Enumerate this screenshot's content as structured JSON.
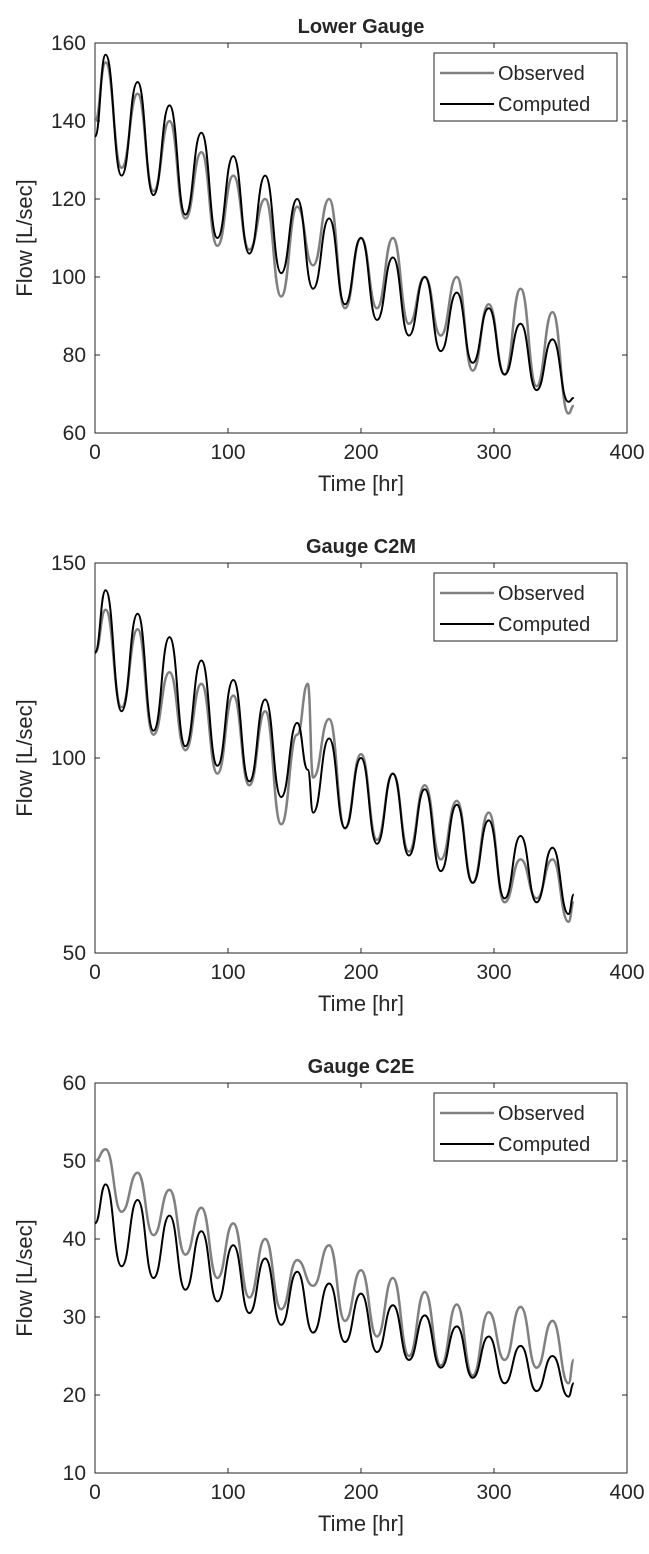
{
  "colors": {
    "observed": "#808080",
    "computed": "#000000",
    "axis": "#262626",
    "background": "#ffffff"
  },
  "chart_data": [
    {
      "type": "line",
      "title": "Lower Gauge",
      "xlabel": "Time [hr]",
      "ylabel": "Flow [L/sec]",
      "xlim": [
        0,
        400
      ],
      "ylim": [
        60,
        160
      ],
      "xticks": [
        0,
        100,
        200,
        300,
        400
      ],
      "yticks": [
        60,
        80,
        100,
        120,
        140,
        160
      ],
      "grid": false,
      "legend_position": "top-right",
      "legend": [
        "Observed",
        "Computed"
      ],
      "x": [
        0,
        8,
        20,
        32,
        44,
        56,
        68,
        80,
        92,
        104,
        116,
        128,
        140,
        152,
        164,
        176,
        188,
        200,
        212,
        224,
        236,
        248,
        260,
        272,
        284,
        296,
        308,
        320,
        332,
        344,
        356,
        360
      ],
      "series": [
        {
          "name": "Observed",
          "values": [
            140,
            155,
            128,
            147,
            122,
            140,
            115,
            132,
            108,
            126,
            107,
            120,
            95,
            118,
            103,
            120,
            92,
            110,
            92,
            110,
            88,
            100,
            85,
            100,
            76,
            93,
            75,
            97,
            72,
            91,
            65,
            67
          ]
        },
        {
          "name": "Computed",
          "values": [
            136,
            157,
            126,
            150,
            121,
            144,
            116,
            137,
            110,
            131,
            106,
            126,
            101,
            120,
            97,
            115,
            93,
            110,
            89,
            105,
            85,
            100,
            81,
            96,
            78,
            92,
            75,
            88,
            71,
            84,
            68,
            69
          ]
        }
      ]
    },
    {
      "type": "line",
      "title": "Gauge C2M",
      "xlabel": "Time [hr]",
      "ylabel": "Flow [L/sec]",
      "xlim": [
        0,
        400
      ],
      "ylim": [
        50,
        150
      ],
      "xticks": [
        0,
        100,
        200,
        300,
        400
      ],
      "yticks": [
        50,
        100,
        150
      ],
      "grid": false,
      "legend_position": "top-right",
      "legend": [
        "Observed",
        "Computed"
      ],
      "x": [
        0,
        8,
        20,
        32,
        44,
        56,
        68,
        80,
        92,
        104,
        116,
        128,
        140,
        152,
        160,
        164,
        176,
        188,
        200,
        212,
        224,
        236,
        248,
        260,
        272,
        284,
        296,
        308,
        320,
        332,
        344,
        356,
        360
      ],
      "series": [
        {
          "name": "Observed",
          "values": [
            127,
            138,
            113,
            133,
            106,
            122,
            102,
            119,
            96,
            116,
            93,
            112,
            83,
            106,
            119,
            95,
            110,
            82,
            101,
            79,
            96,
            76,
            93,
            74,
            89,
            68,
            86,
            63,
            74,
            64,
            74,
            58,
            63
          ]
        },
        {
          "name": "Computed",
          "values": [
            127,
            143,
            112,
            137,
            107,
            131,
            103,
            125,
            98,
            120,
            94,
            115,
            90,
            109,
            97,
            86,
            105,
            82,
            100,
            78,
            96,
            75,
            92,
            71,
            88,
            68,
            84,
            64,
            80,
            63,
            77,
            60,
            65
          ]
        }
      ]
    },
    {
      "type": "line",
      "title": "Gauge C2E",
      "xlabel": "Time [hr]",
      "ylabel": "Flow [L/sec]",
      "xlim": [
        0,
        400
      ],
      "ylim": [
        10,
        60
      ],
      "xticks": [
        0,
        100,
        200,
        300,
        400
      ],
      "yticks": [
        10,
        20,
        30,
        40,
        50,
        60
      ],
      "grid": false,
      "legend_position": "top-right",
      "legend": [
        "Observed",
        "Computed"
      ],
      "x": [
        0,
        8,
        20,
        32,
        44,
        56,
        68,
        80,
        92,
        104,
        116,
        128,
        140,
        152,
        164,
        176,
        188,
        200,
        212,
        224,
        236,
        248,
        260,
        272,
        284,
        296,
        308,
        320,
        332,
        344,
        356,
        360
      ],
      "series": [
        {
          "name": "Observed",
          "values": [
            50,
            51.5,
            43.5,
            48.5,
            40.5,
            46.3,
            38,
            44,
            35,
            42,
            32.5,
            40,
            31,
            37.3,
            34,
            39.2,
            29.5,
            36,
            27.5,
            35,
            25,
            33.2,
            23.8,
            31.6,
            22.5,
            30.6,
            24.5,
            31.3,
            23.5,
            29.5,
            21.5,
            24.5
          ]
        },
        {
          "name": "Computed",
          "values": [
            42,
            47,
            36.5,
            45,
            35,
            43,
            33.5,
            41,
            32,
            39.2,
            30.5,
            37.5,
            29,
            35.8,
            28,
            34.3,
            26.8,
            33,
            25.5,
            31.5,
            24.5,
            30.2,
            23.5,
            28.8,
            22.2,
            27.5,
            21.5,
            26.3,
            20.5,
            25,
            19.8,
            21.5
          ]
        }
      ]
    }
  ]
}
